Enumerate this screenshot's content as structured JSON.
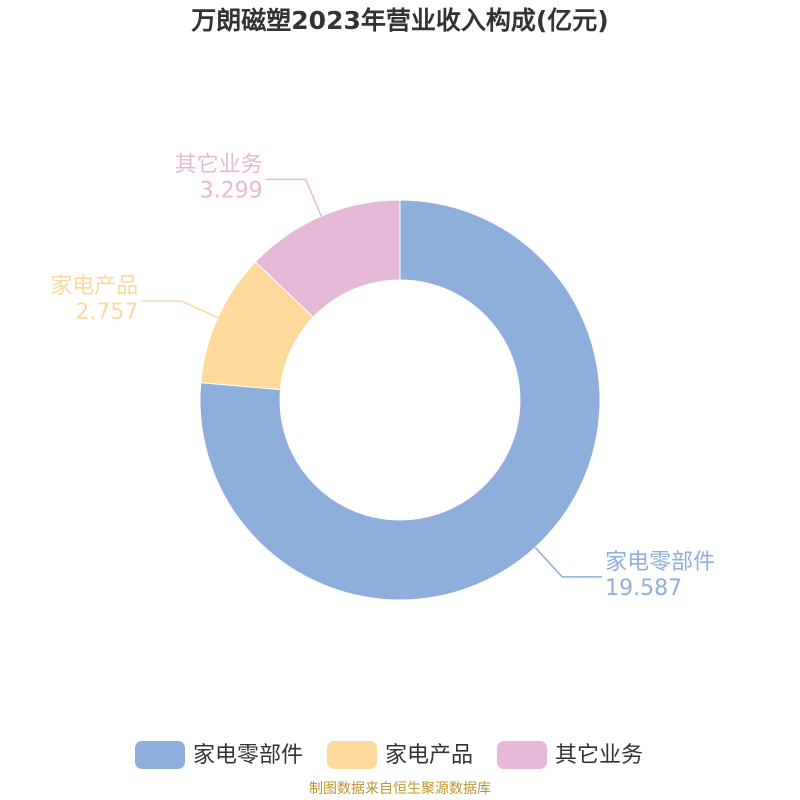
{
  "chart_data": {
    "type": "pie",
    "title": "万朗磁塑2023年营业收入构成(亿元)",
    "categories": [
      "家电零部件",
      "家电产品",
      "其它业务"
    ],
    "values": [
      19.587,
      2.757,
      3.299
    ],
    "colors": [
      "#8eaedb",
      "#fdd99b",
      "#e6b8d8"
    ],
    "donut": true,
    "source": "制图数据来自恒生聚源数据库"
  }
}
